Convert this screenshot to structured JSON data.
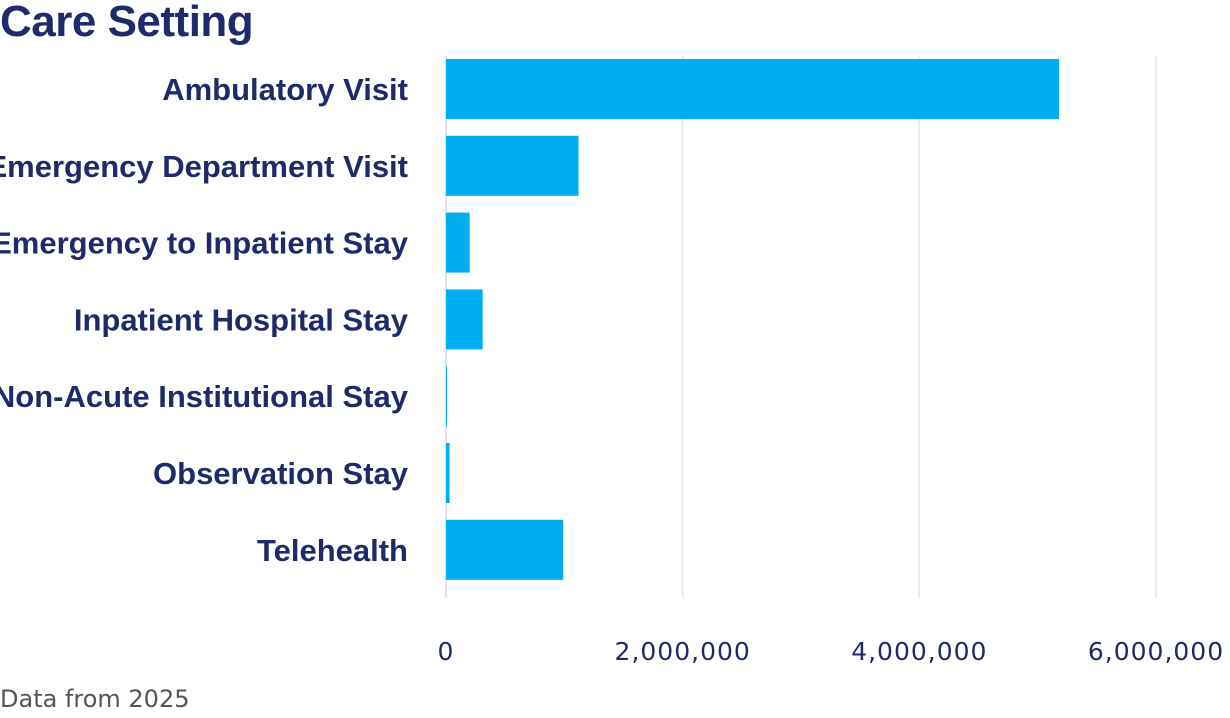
{
  "chart_data": {
    "type": "bar",
    "orientation": "horizontal",
    "title": "Care Setting",
    "footnote": "Data from 2025",
    "categories": [
      "Ambulatory Visit",
      "Emergency Department Visit",
      "Emergency to Inpatient Stay",
      "Inpatient Hospital Stay",
      "Non-Acute Institutional Stay",
      "Observation Stay",
      "Telehealth"
    ],
    "values": [
      5180000,
      1120000,
      200000,
      310000,
      5000,
      30000,
      990000
    ],
    "xlim": [
      0,
      6000000
    ],
    "x_ticks": [
      0,
      2000000,
      4000000,
      6000000
    ],
    "x_tick_labels": [
      "0",
      "2,000,000",
      "4,000,000",
      "6,000,000"
    ],
    "xlabel": "",
    "ylabel": "",
    "grid": "vertical",
    "legend": "none",
    "bar_color": "#00aeef"
  }
}
